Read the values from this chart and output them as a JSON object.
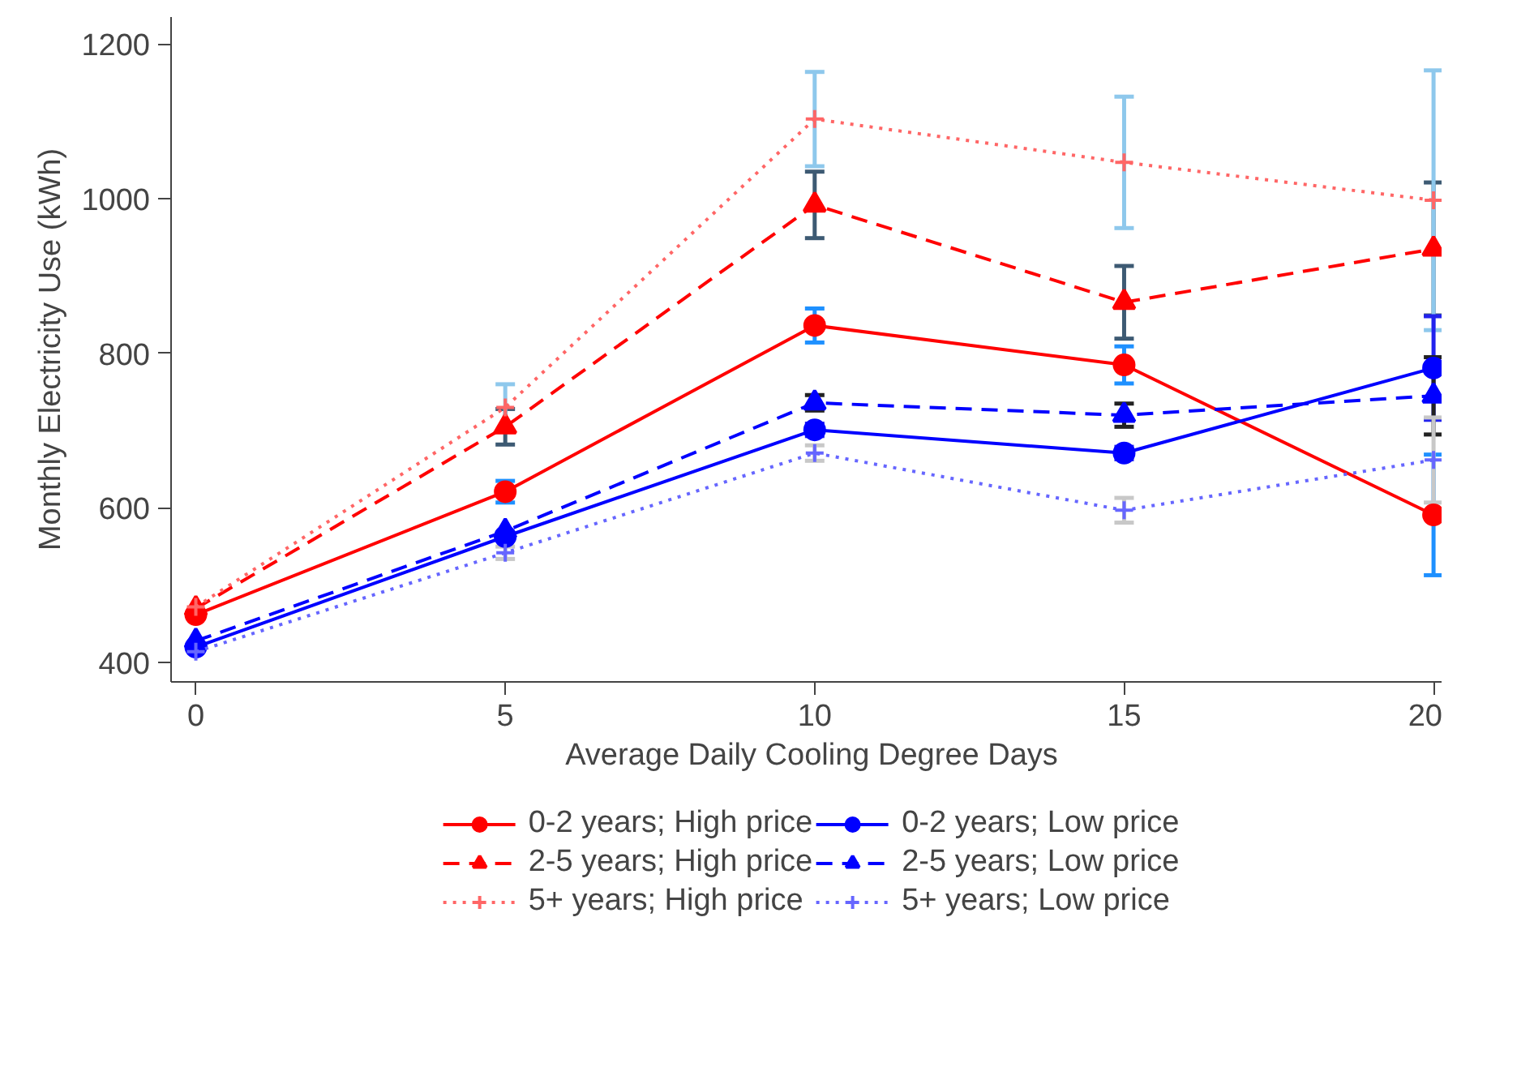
{
  "chart_data": {
    "type": "line",
    "xlabel": "Average Daily Cooling Degree Days",
    "ylabel": "Monthly Electricity Use (kWh)",
    "x": [
      0,
      5,
      10,
      15,
      20
    ],
    "xlim": [
      -0.4,
      20.3
    ],
    "xticks": [
      0,
      5,
      10,
      15,
      20
    ],
    "ylim": [
      375,
      1235
    ],
    "yticks": [
      400,
      600,
      800,
      1000,
      1200
    ],
    "grid": false,
    "legend": "bottom",
    "series": [
      {
        "name": "0-2 years; High price",
        "color": "#ff0000",
        "marker": "circle",
        "line_style": "solid",
        "values": [
          462,
          621,
          836,
          785,
          591
        ],
        "errors": [
          null,
          14,
          22,
          24,
          78
        ]
      },
      {
        "name": "2-5 years; High price",
        "color": "#ff0000",
        "marker": "triangle",
        "line_style": "dashed",
        "values": [
          470,
          705,
          992,
          866,
          935
        ],
        "errors": [
          null,
          23,
          43,
          47,
          86
        ]
      },
      {
        "name": "5+ years; High price",
        "color": "#ff6666",
        "marker": "cross",
        "line_style": "dotted",
        "values": [
          472,
          730,
          1103,
          1047,
          998
        ],
        "errors": [
          null,
          30,
          61,
          85,
          168
        ]
      },
      {
        "name": "0-2 years; Low price",
        "color": "#0000ff",
        "marker": "circle",
        "line_style": "solid",
        "values": [
          420,
          563,
          701,
          671,
          781
        ],
        "errors": [
          null,
          null,
          8,
          8,
          67
        ]
      },
      {
        "name": "2-5 years; Low price",
        "color": "#0000ff",
        "marker": "triangle",
        "line_style": "dashed",
        "values": [
          428,
          570,
          736,
          720,
          745
        ],
        "errors": [
          null,
          null,
          10,
          15,
          50
        ]
      },
      {
        "name": "5+ years; Low price",
        "color": "#6666ff",
        "marker": "cross",
        "line_style": "dotted",
        "values": [
          414,
          542,
          671,
          597,
          662
        ],
        "errors": [
          null,
          8,
          10,
          16,
          55
        ]
      }
    ]
  }
}
